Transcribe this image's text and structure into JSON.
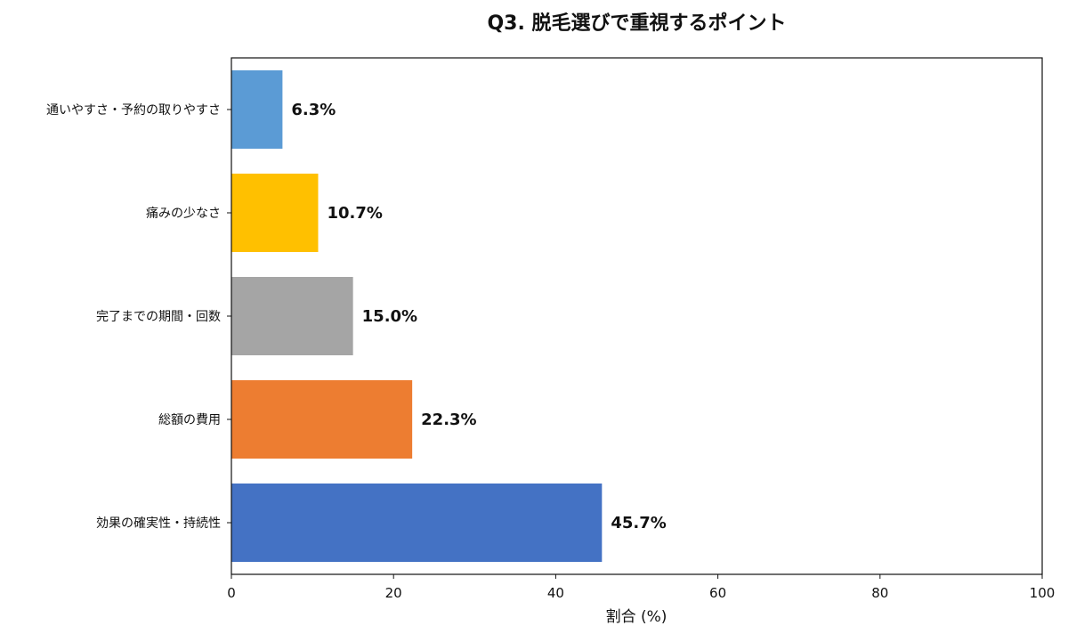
{
  "chart_data": {
    "type": "bar",
    "orientation": "horizontal",
    "title": "Q3. 脱毛選びで重視するポイント",
    "xlabel": "割合 (%)",
    "ylabel": "",
    "xlim": [
      0,
      100
    ],
    "xticks": [
      "0",
      "20",
      "40",
      "60",
      "80",
      "100"
    ],
    "categories": [
      "通いやすさ・予約の取りやすさ",
      "痛みの少なさ",
      "完了までの期間・回数",
      "総額の費用",
      "効果の確実性・持続性"
    ],
    "values": [
      6.3,
      10.7,
      15.0,
      22.3,
      45.7
    ],
    "value_labels": [
      "6.3%",
      "10.7%",
      "15.0%",
      "22.3%",
      "45.7%"
    ],
    "colors": [
      "#5b9bd5",
      "#ffc000",
      "#a5a5a5",
      "#ed7d31",
      "#4472c4"
    ],
    "grid": false,
    "legend": "none"
  }
}
